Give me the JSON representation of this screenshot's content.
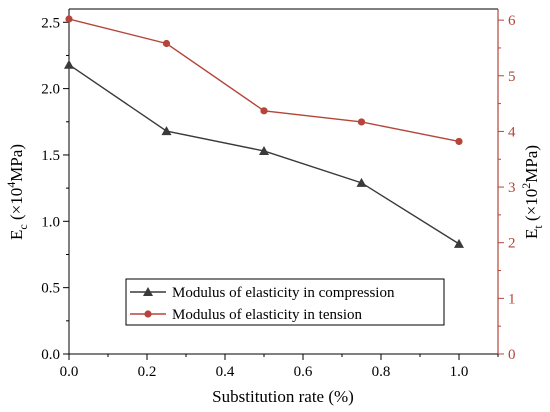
{
  "chart_data": {
    "type": "line",
    "x": [
      0.0,
      0.25,
      0.5,
      0.75,
      1.0
    ],
    "xlabel": "Substitution rate (%)",
    "xlim": [
      0.0,
      1.1
    ],
    "xticks": [
      "0.0",
      "0.2",
      "0.4",
      "0.6",
      "0.8",
      "1.0"
    ],
    "ylabel_left": {
      "main": "E",
      "sub": "c",
      "rest": " (×10",
      "sup": "4",
      "unit": "MPa)"
    },
    "ylim_left": [
      0.0,
      2.6
    ],
    "yticks_left": [
      "0.0",
      "0.5",
      "1.0",
      "1.5",
      "2.0",
      "2.5"
    ],
    "ylabel_right": {
      "main": "E",
      "sub": "t",
      "rest": " (×10",
      "sup": "2",
      "unit": "MPa)"
    },
    "ylim_right": [
      0,
      6.2
    ],
    "yticks_right": [
      "0",
      "1",
      "2",
      "3",
      "4",
      "5",
      "6"
    ],
    "series": [
      {
        "name": "Modulus of elasticity in compression",
        "axis": "left",
        "marker": "triangle",
        "color": "#3a3a3a",
        "values": [
          2.18,
          1.68,
          1.53,
          1.29,
          0.83
        ]
      },
      {
        "name": "Modulus of elasticity in tension",
        "axis": "right",
        "marker": "circle",
        "color": "#b5453a",
        "values": [
          6.02,
          5.58,
          4.37,
          4.17,
          3.82
        ]
      }
    ],
    "legend_position": "bottom-left",
    "grid": false
  }
}
